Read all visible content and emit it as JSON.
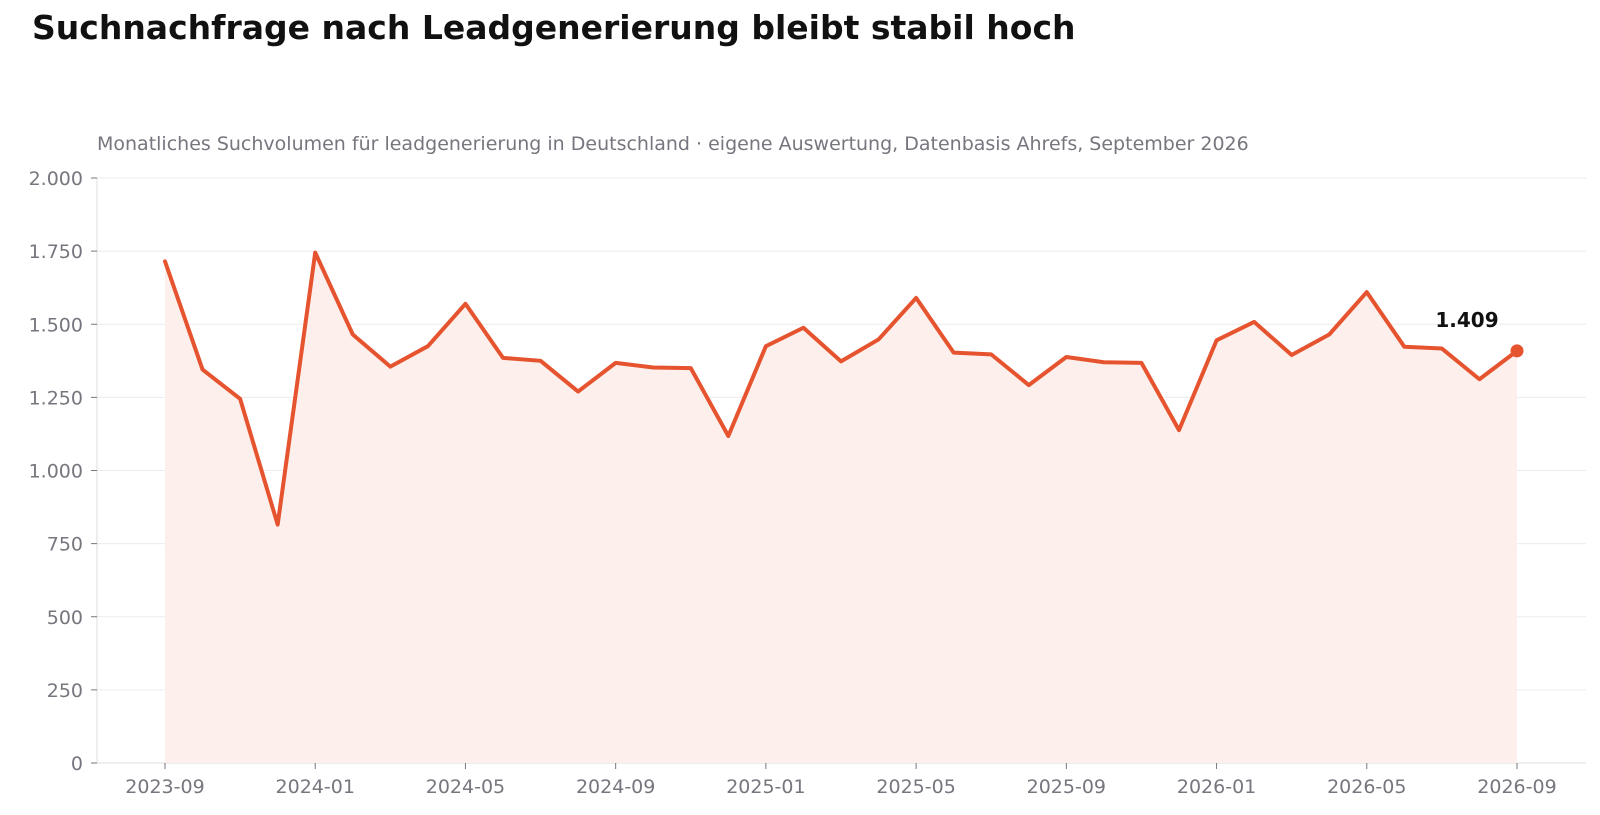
{
  "title": "Suchnachfrage nach Leadgenerierung bleibt stabil hoch",
  "chart_data": {
    "type": "area",
    "title": "Suchnachfrage nach Leadgenerierung bleibt stabil hoch",
    "subtitle": "Monatliches Suchvolumen für leadgenerierung in Deutschland · eigene Auswertung, Datenbasis Ahrefs, September 2026",
    "xlabel": "",
    "ylabel": "",
    "x": [
      "2023-09",
      "2023-10",
      "2023-11",
      "2023-12",
      "2024-01",
      "2024-02",
      "2024-03",
      "2024-04",
      "2024-05",
      "2024-06",
      "2024-07",
      "2024-08",
      "2024-09",
      "2024-10",
      "2024-11",
      "2024-12",
      "2025-01",
      "2025-02",
      "2025-03",
      "2025-04",
      "2025-05",
      "2025-06",
      "2025-07",
      "2025-08",
      "2025-09",
      "2025-10",
      "2025-11",
      "2025-12",
      "2026-01",
      "2026-02",
      "2026-03",
      "2026-04",
      "2026-05",
      "2026-06",
      "2026-07",
      "2026-08",
      "2026-09"
    ],
    "values": [
      1715,
      1345,
      1245,
      815,
      1745,
      1465,
      1355,
      1425,
      1570,
      1385,
      1375,
      1270,
      1368,
      1352,
      1350,
      1118,
      1425,
      1488,
      1373,
      1448,
      1590,
      1403,
      1397,
      1292,
      1388,
      1370,
      1368,
      1138,
      1445,
      1508,
      1395,
      1465,
      1610,
      1423,
      1417,
      1312,
      1409
    ],
    "x_ticks": [
      "2023-09",
      "2024-01",
      "2024-05",
      "2024-09",
      "2025-01",
      "2025-05",
      "2025-09",
      "2026-01",
      "2026-05",
      "2026-09"
    ],
    "y_ticks": [
      0,
      250,
      500,
      750,
      1000,
      1250,
      1500,
      1750,
      2000
    ],
    "y_tick_labels": [
      "0",
      "250",
      "500",
      "750",
      "1.000",
      "1.250",
      "1.500",
      "1.750",
      "2.000"
    ],
    "ylim": [
      0,
      2000
    ],
    "annotation": {
      "x": "2026-09",
      "value": 1409,
      "label": "1.409"
    },
    "grid": true,
    "legend": "none",
    "colors": {
      "line": "#e6532f",
      "fill": "#fdf0ec",
      "grid": "#ebebeb",
      "tick_text": "#76767f",
      "subtitle_text": "#76767f",
      "axis": "#dcdcdc",
      "annotation_text": "#111111"
    }
  }
}
